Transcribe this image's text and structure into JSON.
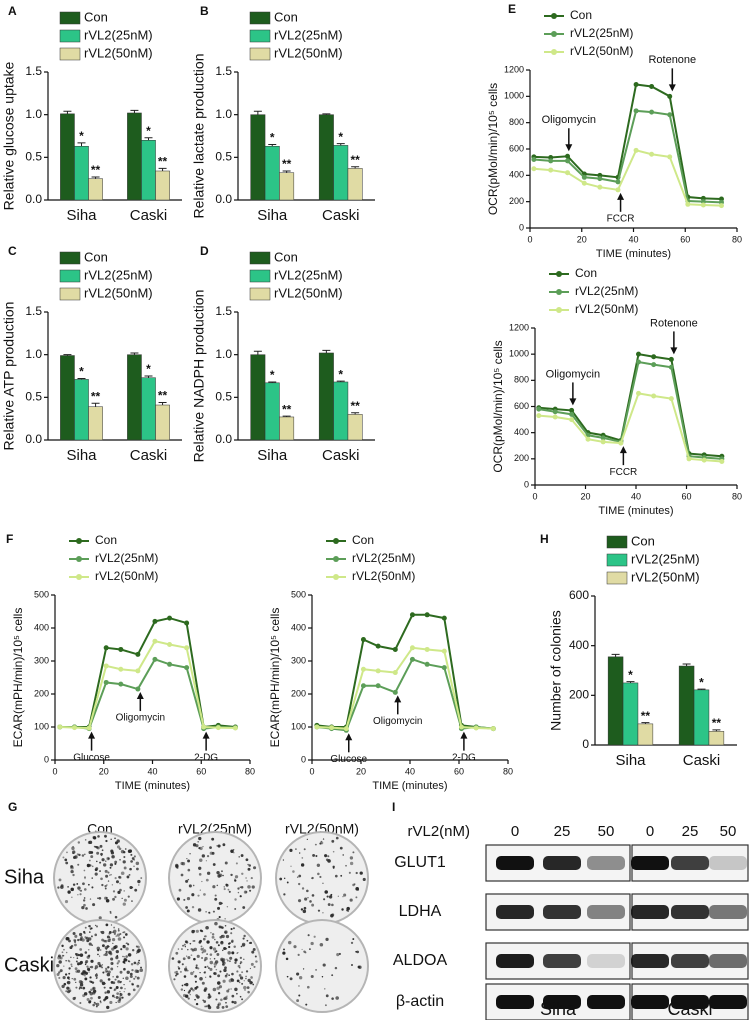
{
  "chart_data": [
    {
      "type": "bar",
      "panel": "A",
      "ylabel": "Relative glucose uptake",
      "categories": [
        "Siha",
        "Caski"
      ],
      "series": [
        {
          "name": "Con",
          "color": "#1e5c1e",
          "values": [
            1.01,
            1.02
          ],
          "errors": [
            0.03,
            0.03
          ]
        },
        {
          "name": "rVL2(25nM)",
          "color": "#2cc487",
          "values": [
            0.63,
            0.7
          ],
          "errors": [
            0.04,
            0.03
          ],
          "significance": [
            "*",
            "*"
          ]
        },
        {
          "name": "rVL2(50nM)",
          "color": "#e0dba4",
          "values": [
            0.25,
            0.34
          ],
          "errors": [
            0.02,
            0.03
          ],
          "significance": [
            "**",
            "**"
          ]
        }
      ],
      "ylim": [
        0,
        1.5
      ],
      "yticks": [
        {
          "value": 0,
          "label": "0.0"
        },
        0.5,
        {
          "value": 1,
          "label": "1.0"
        },
        1.5
      ]
    },
    {
      "type": "bar",
      "panel": "B",
      "ylabel": "Relative lactate production",
      "categories": [
        "Siha",
        "Caski"
      ],
      "series": [
        {
          "name": "Con",
          "color": "#1e5c1e",
          "values": [
            1.0,
            1.0
          ],
          "errors": [
            0.04,
            0.01
          ]
        },
        {
          "name": "rVL2(25nM)",
          "color": "#2cc487",
          "values": [
            0.63,
            0.64
          ],
          "errors": [
            0.02,
            0.02
          ],
          "significance": [
            "*",
            "*"
          ]
        },
        {
          "name": "rVL2(50nM)",
          "color": "#e0dba4",
          "values": [
            0.32,
            0.37
          ],
          "errors": [
            0.02,
            0.02
          ],
          "significance": [
            "**",
            "**"
          ]
        }
      ],
      "ylim": [
        0,
        1.5
      ],
      "yticks": [
        {
          "value": 0,
          "label": "0.0"
        },
        0.5,
        {
          "value": 1,
          "label": "1.0"
        },
        1.5
      ]
    },
    {
      "type": "bar",
      "panel": "C",
      "ylabel": "Relative ATP production",
      "categories": [
        "Siha",
        "Caski"
      ],
      "series": [
        {
          "name": "Con",
          "color": "#1e5c1e",
          "values": [
            0.99,
            1.0
          ],
          "errors": [
            0.01,
            0.02
          ]
        },
        {
          "name": "rVL2(25nM)",
          "color": "#2cc487",
          "values": [
            0.71,
            0.73
          ],
          "errors": [
            0.01,
            0.02
          ],
          "significance": [
            "*",
            "*"
          ]
        },
        {
          "name": "rVL2(50nM)",
          "color": "#e0dba4",
          "values": [
            0.39,
            0.41
          ],
          "errors": [
            0.04,
            0.03
          ],
          "significance": [
            "**",
            "**"
          ]
        }
      ],
      "ylim": [
        0,
        1.5
      ],
      "yticks": [
        {
          "value": 0,
          "label": "0.0"
        },
        0.5,
        {
          "value": 1,
          "label": "1.0"
        },
        1.5
      ]
    },
    {
      "type": "bar",
      "panel": "D",
      "ylabel": "Relative NADPH production",
      "categories": [
        "Siha",
        "Caski"
      ],
      "series": [
        {
          "name": "Con",
          "color": "#1e5c1e",
          "values": [
            1.0,
            1.02
          ],
          "errors": [
            0.04,
            0.03
          ]
        },
        {
          "name": "rVL2(25nM)",
          "color": "#2cc487",
          "values": [
            0.67,
            0.68
          ],
          "errors": [
            0.01,
            0.01
          ],
          "significance": [
            "*",
            "*"
          ]
        },
        {
          "name": "rVL2(50nM)",
          "color": "#e0dba4",
          "values": [
            0.27,
            0.3
          ],
          "errors": [
            0.01,
            0.02
          ],
          "significance": [
            "**",
            "**"
          ]
        }
      ],
      "ylim": [
        0,
        1.5
      ],
      "yticks": [
        {
          "value": 0,
          "label": "0.0"
        },
        0.5,
        {
          "value": 1,
          "label": "1.0"
        },
        1.5
      ]
    },
    {
      "type": "line",
      "panel": "E",
      "ylabel": "OCR(pMol/min)/10⁵ cells",
      "xlabel": "TIME (minutes)",
      "x": [
        1.5,
        8,
        14.5,
        21,
        27,
        34,
        41,
        47,
        54,
        61,
        67,
        74
      ],
      "series": [
        {
          "name": "Con",
          "color": "#2d6a1f",
          "values": [
            540,
            535,
            545,
            410,
            400,
            385,
            1090,
            1075,
            1000,
            235,
            225,
            220
          ]
        },
        {
          "name": "rVL2(25nM)",
          "color": "#5c9e58",
          "values": [
            520,
            510,
            510,
            385,
            375,
            350,
            890,
            880,
            860,
            205,
            200,
            195
          ]
        },
        {
          "name": "rVL2(50nM)",
          "color": "#cfe889",
          "values": [
            450,
            440,
            420,
            340,
            310,
            290,
            590,
            560,
            540,
            180,
            175,
            170
          ]
        }
      ],
      "annotations": [
        {
          "text": "Oligomycin",
          "x": 15,
          "position": "above"
        },
        {
          "text": "FCCR",
          "x": 35,
          "position": "below"
        },
        {
          "text": "Rotenone",
          "x": 55,
          "position": "above"
        }
      ],
      "xlim": [
        0,
        80
      ],
      "xticks": [
        0,
        20,
        40,
        60,
        80
      ],
      "ylim": [
        0,
        1200
      ],
      "yticks": [
        0,
        200,
        400,
        600,
        800,
        1000,
        1200
      ]
    },
    {
      "type": "line",
      "ylabel": "OCR(pMol/min)/10⁵ cells",
      "xlabel": "TIME (minutes)",
      "x": [
        1.5,
        8,
        14.5,
        21,
        27,
        34,
        41,
        47,
        54,
        61,
        67,
        74
      ],
      "series": [
        {
          "name": "Con",
          "color": "#2d6a1f",
          "values": [
            590,
            580,
            570,
            400,
            380,
            340,
            1000,
            980,
            960,
            240,
            230,
            220
          ]
        },
        {
          "name": "rVL2(25nM)",
          "color": "#5c9e58",
          "values": [
            580,
            560,
            540,
            380,
            360,
            330,
            940,
            920,
            900,
            220,
            210,
            200
          ]
        },
        {
          "name": "rVL2(50nM)",
          "color": "#cfe889",
          "values": [
            530,
            520,
            500,
            350,
            330,
            320,
            700,
            680,
            660,
            200,
            190,
            180
          ]
        }
      ],
      "annotations": [
        {
          "text": "Oligomycin",
          "x": 15,
          "position": "above"
        },
        {
          "text": "FCCR",
          "x": 35,
          "position": "below"
        },
        {
          "text": "Rotenone",
          "x": 55,
          "position": "above"
        }
      ],
      "xlim": [
        0,
        80
      ],
      "xticks": [
        0,
        20,
        40,
        60,
        80
      ],
      "ylim": [
        0,
        1200
      ],
      "yticks": [
        0,
        200,
        400,
        600,
        800,
        1000,
        1200
      ]
    },
    {
      "type": "line",
      "panel": "F",
      "ylabel": "ECAR(mPH/min)/10⁵ cells",
      "xlabel": "TIME (minutes)",
      "x": [
        2,
        8,
        14,
        21,
        27,
        34,
        41,
        47,
        54,
        61,
        67,
        74
      ],
      "series": [
        {
          "name": "Con",
          "color": "#2d6a1f",
          "values": [
            100,
            100,
            100,
            340,
            335,
            320,
            420,
            430,
            415,
            100,
            105,
            100
          ]
        },
        {
          "name": "rVL2(25nM)",
          "color": "#5c9e58",
          "values": [
            100,
            100,
            95,
            235,
            230,
            215,
            305,
            290,
            280,
            95,
            100,
            98
          ]
        },
        {
          "name": "rVL2(50nM)",
          "color": "#cfe889",
          "values": [
            100,
            98,
            97,
            285,
            275,
            270,
            360,
            350,
            340,
            100,
            98,
            97
          ]
        }
      ],
      "annotations": [
        {
          "text": "Glucose",
          "x": 15,
          "position": "below"
        },
        {
          "text": "Oligomycin",
          "x": 35,
          "position": "below"
        },
        {
          "text": "2-DG",
          "x": 62,
          "position": "below"
        }
      ],
      "xlim": [
        0,
        80
      ],
      "xticks": [
        0,
        20,
        40,
        60,
        80
      ],
      "ylim": [
        0,
        500
      ],
      "yticks": [
        0,
        100,
        200,
        300,
        400,
        500
      ]
    },
    {
      "type": "line",
      "ylabel": "ECAR(mPH/min)/10⁵ cells",
      "xlabel": "TIME (minutes)",
      "x": [
        2,
        8,
        14,
        21,
        27,
        34,
        41,
        47,
        54,
        61,
        67,
        74
      ],
      "series": [
        {
          "name": "Con",
          "color": "#2d6a1f",
          "values": [
            105,
            100,
            100,
            365,
            345,
            335,
            440,
            440,
            430,
            105,
            100,
            95
          ]
        },
        {
          "name": "rVL2(25nM)",
          "color": "#5c9e58",
          "values": [
            100,
            95,
            90,
            225,
            225,
            205,
            305,
            290,
            280,
            95,
            100,
            95
          ]
        },
        {
          "name": "rVL2(50nM)",
          "color": "#cfe889",
          "values": [
            100,
            98,
            95,
            275,
            270,
            265,
            340,
            335,
            330,
            100,
            97,
            95
          ]
        }
      ],
      "annotations": [
        {
          "text": "Glucose",
          "x": 15,
          "position": "below"
        },
        {
          "text": "Oligomycin",
          "x": 35,
          "position": "below"
        },
        {
          "text": "2-DG",
          "x": 62,
          "position": "below"
        }
      ],
      "xlim": [
        0,
        80
      ],
      "xticks": [
        0,
        20,
        40,
        60,
        80
      ],
      "ylim": [
        0,
        500
      ],
      "yticks": [
        0,
        100,
        200,
        300,
        400,
        500
      ]
    },
    {
      "type": "bar",
      "panel": "H",
      "ylabel": "Number of colonies",
      "categories": [
        "Siha",
        "Caski"
      ],
      "series": [
        {
          "name": "Con",
          "color": "#1e5c1e",
          "values": [
            355,
            318
          ],
          "errors": [
            10,
            8
          ]
        },
        {
          "name": "rVL2(25nM)",
          "color": "#2cc487",
          "values": [
            250,
            222
          ],
          "errors": [
            5,
            3
          ],
          "significance": [
            "*",
            "*"
          ]
        },
        {
          "name": "rVL2(50nM)",
          "color": "#e0dba4",
          "values": [
            85,
            55
          ],
          "errors": [
            5,
            6
          ],
          "significance": [
            "**",
            "**"
          ]
        }
      ],
      "ylim": [
        0,
        600
      ],
      "yticks": [
        0,
        200,
        400,
        600
      ]
    }
  ],
  "colony_assay": {
    "panel": "G",
    "columns": [
      "Con",
      "rVL2(25nM)",
      "rVL2(50nM)"
    ],
    "rows": [
      "Siha",
      "Caski"
    ]
  },
  "western_blot": {
    "panel": "I",
    "treatment_label": "rVL2(nM)",
    "doses": [
      "0",
      "25",
      "50"
    ],
    "proteins": [
      "GLUT1",
      "LDHA",
      "ALDOA",
      "β-actin"
    ],
    "cell_lines": [
      "Siha",
      "Caski"
    ]
  }
}
